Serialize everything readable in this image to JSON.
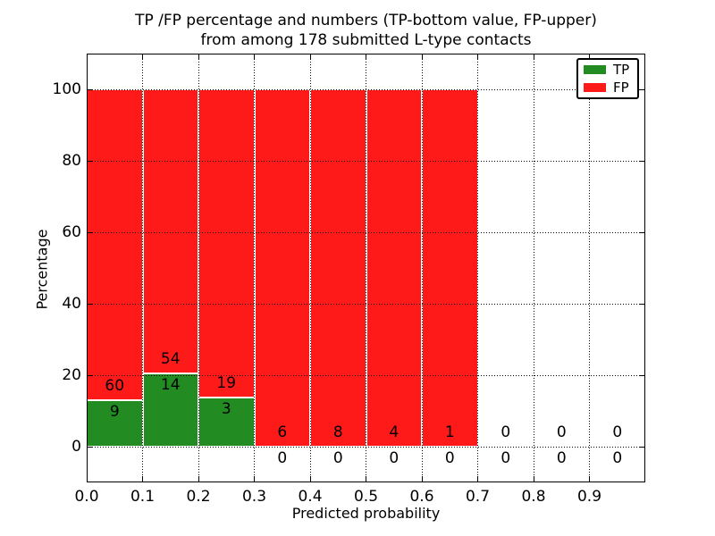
{
  "chart_data": {
    "type": "bar",
    "stacking": "percentage",
    "title_line1": "TP /FP percentage and numbers (TP-bottom value, FP-upper)",
    "title_line2": "from among 178 submitted L-type contacts",
    "xlabel": "Predicted probability",
    "ylabel": "Percentage",
    "xlim": [
      0.0,
      1.0
    ],
    "ylim": [
      -10,
      110
    ],
    "xticks": [
      0.0,
      0.1,
      0.2,
      0.3,
      0.4,
      0.5,
      0.6,
      0.7,
      0.8,
      0.9
    ],
    "xticklabels": [
      "0.0",
      "0.1",
      "0.2",
      "0.3",
      "0.4",
      "0.5",
      "0.6",
      "0.7",
      "0.8",
      "0.9"
    ],
    "yticks": [
      0,
      20,
      40,
      60,
      80,
      100
    ],
    "yticklabels": [
      "0",
      "20",
      "40",
      "60",
      "80",
      "100"
    ],
    "grid": "dotted",
    "colors": {
      "tp": "#228b22",
      "fp": "#ff1a1a"
    },
    "legend": {
      "position": "upper-right",
      "entries": [
        {
          "label": "TP",
          "color": "#228b22"
        },
        {
          "label": "FP",
          "color": "#ff1a1a"
        }
      ]
    },
    "bins": [
      {
        "range": [
          0.0,
          0.1
        ],
        "tp": 9,
        "fp": 60
      },
      {
        "range": [
          0.1,
          0.2
        ],
        "tp": 14,
        "fp": 54
      },
      {
        "range": [
          0.2,
          0.3
        ],
        "tp": 3,
        "fp": 19
      },
      {
        "range": [
          0.3,
          0.4
        ],
        "tp": 0,
        "fp": 6
      },
      {
        "range": [
          0.4,
          0.5
        ],
        "tp": 0,
        "fp": 8
      },
      {
        "range": [
          0.5,
          0.6
        ],
        "tp": 0,
        "fp": 4
      },
      {
        "range": [
          0.6,
          0.7
        ],
        "tp": 0,
        "fp": 1
      },
      {
        "range": [
          0.7,
          0.8
        ],
        "tp": 0,
        "fp": 0
      },
      {
        "range": [
          0.8,
          0.9
        ],
        "tp": 0,
        "fp": 0
      },
      {
        "range": [
          0.9,
          1.0
        ],
        "tp": 0,
        "fp": 0
      }
    ]
  }
}
